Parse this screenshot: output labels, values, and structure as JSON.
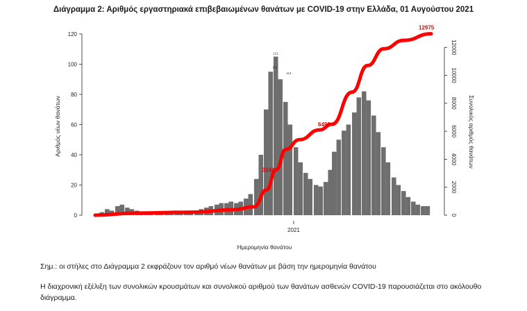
{
  "page": {
    "note": "Σημ.: οι στήλες στο Διάγραμμα 2 εκφράζουν τον αριθμό νέων θανάτων με βάση την ημερομηνία θανάτου",
    "paragraph": "Η διαχρονική εξέλιξη των συνολικών κρουσμάτων και συνολικού αριθμού των θανάτων ασθενών COVID-19 παρουσιάζεται στο ακόλουθο διάγραμμα."
  },
  "chart_data": {
    "type": "bar",
    "title": "Διάγραμμα 2: Αριθμός εργαστηριακά επιβεβαιωμένων θανάτων με COVID-19 στην Ελλάδα, 01 Αυγούστου 2021",
    "xlabel": "Ημερομηνία θανάτου",
    "ylabel_left": "Αριθμός νέων θανάτων",
    "ylabel_right": "Συνολικός αριθμός θανάτων",
    "x_tick_labels": [
      "2021"
    ],
    "ylim_left": [
      0,
      125
    ],
    "y_ticks_left": [
      0,
      20,
      40,
      60,
      80,
      100,
      120
    ],
    "ylim_right": [
      0,
      13500
    ],
    "y_ticks_right": [
      0,
      2000,
      4000,
      6000,
      8000,
      10000,
      12000
    ],
    "bar_color": "#6e6e6e",
    "line_color": "#ff0000",
    "x_range": [
      "2020-03-01",
      "2021-08-01"
    ],
    "daily_deaths_weekly": [
      {
        "x": "2020-03",
        "y": [
          1,
          2,
          4,
          3
        ]
      },
      {
        "x": "2020-04",
        "y": [
          6,
          7,
          5,
          4
        ]
      },
      {
        "x": "2020-05",
        "y": [
          3,
          2,
          2,
          1
        ]
      },
      {
        "x": "2020-06",
        "y": [
          1,
          1,
          1,
          1
        ]
      },
      {
        "x": "2020-07",
        "y": [
          1,
          1,
          2,
          2
        ]
      },
      {
        "x": "2020-08",
        "y": [
          3,
          4,
          5,
          6
        ]
      },
      {
        "x": "2020-09",
        "y": [
          7,
          8,
          8,
          9
        ]
      },
      {
        "x": "2020-10",
        "y": [
          8,
          9,
          11,
          14
        ]
      },
      {
        "x": "2020-11",
        "y": [
          24,
          40,
          70,
          95
        ]
      },
      {
        "x": "2020-12",
        "y": [
          105,
          90,
          75,
          60
        ]
      },
      {
        "x": "2021-01",
        "y": [
          45,
          35,
          28,
          24
        ]
      },
      {
        "x": "2021-02",
        "y": [
          20,
          19,
          22,
          30
        ]
      },
      {
        "x": "2021-03",
        "y": [
          42,
          50,
          56,
          60
        ]
      },
      {
        "x": "2021-04",
        "y": [
          68,
          78,
          82,
          76
        ]
      },
      {
        "x": "2021-05",
        "y": [
          66,
          55,
          45,
          35
        ]
      },
      {
        "x": "2021-06",
        "y": [
          25,
          20,
          16,
          12
        ]
      },
      {
        "x": "2021-07",
        "y": [
          9,
          7,
          6,
          6
        ]
      }
    ],
    "bar_labels": [
      "121",
      "115",
      "114"
    ],
    "cumulative_deaths": [
      {
        "x": "2020-03-01",
        "y": 0
      },
      {
        "x": "2020-05-01",
        "y": 150
      },
      {
        "x": "2020-08-01",
        "y": 220
      },
      {
        "x": "2020-10-01",
        "y": 400
      },
      {
        "x": "2020-11-01",
        "y": 600
      },
      {
        "x": "2020-11-20",
        "y": 1800
      },
      {
        "x": "2020-12-05",
        "y": 3244
      },
      {
        "x": "2020-12-20",
        "y": 4700
      },
      {
        "x": "2021-01-10",
        "y": 5400
      },
      {
        "x": "2021-02-10",
        "y": 6100
      },
      {
        "x": "2021-03-01",
        "y": 6499
      },
      {
        "x": "2021-04-01",
        "y": 8800
      },
      {
        "x": "2021-04-25",
        "y": 10700
      },
      {
        "x": "2021-05-20",
        "y": 11900
      },
      {
        "x": "2021-06-20",
        "y": 12500
      },
      {
        "x": "2021-08-01",
        "y": 12975
      }
    ],
    "annotations": [
      "3244",
      "6499",
      "12975"
    ]
  }
}
